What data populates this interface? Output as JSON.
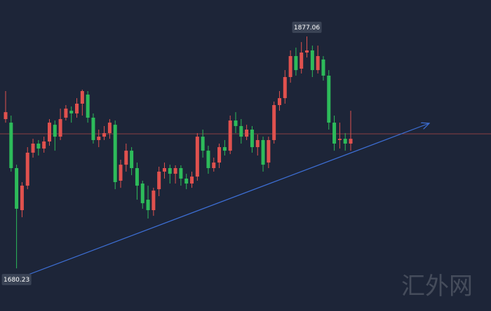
{
  "chart_data": {
    "type": "candlestick",
    "up_color": "#e0514e",
    "down_color": "#2dbb5a",
    "ylim": [
      1644,
      1908
    ],
    "price_line": 1794.4,
    "max_label": "1877.06",
    "min_label": "1680.23",
    "watermark": "汇外网",
    "open": [
      1806.9,
      1803.9,
      1765.3,
      1729.6,
      1750.4,
      1778.4,
      1786.1,
      1781.9,
      1787.9,
      1802.1,
      1792.0,
      1808.1,
      1814.0,
      1811.7,
      1820.0,
      1827.7,
      1808.1,
      1789.1,
      1792.0,
      1795.0,
      1802.1,
      1754.6,
      1768.2,
      1780.1,
      1765.3,
      1752.2,
      1738.5,
      1729.6,
      1747.4,
      1762.3,
      1765.3,
      1760.5,
      1765.3,
      1756.4,
      1752.2,
      1758.1,
      1792.0,
      1780.1,
      1765.3,
      1770.0,
      1783.1,
      1780.1,
      1805.7,
      1801.0,
      1792.0,
      1798.0,
      1783.1,
      1789.1,
      1770.0,
      1789.1,
      1818.8,
      1824.7,
      1842.6,
      1860.4,
      1849.7,
      1863.4,
      1865.2,
      1848.5,
      1857.5,
      1843.8,
      1803.9,
      1789.1,
      1790.2,
      1786.1
    ],
    "high": [
      1830.7,
      1809.9,
      1768.2,
      1753.4,
      1783.1,
      1790.2,
      1789.1,
      1792.0,
      1806.9,
      1805.7,
      1815.8,
      1818.8,
      1817.6,
      1824.7,
      1831.9,
      1830.7,
      1811.7,
      1798.0,
      1801.0,
      1806.9,
      1805.7,
      1772.4,
      1786.1,
      1783.1,
      1770.0,
      1754.6,
      1750.4,
      1748.6,
      1766.5,
      1770.0,
      1768.2,
      1767.7,
      1767.7,
      1760.5,
      1762.3,
      1795.0,
      1798.0,
      1784.3,
      1774.2,
      1786.1,
      1789.1,
      1809.9,
      1812.8,
      1806.9,
      1802.1,
      1801.0,
      1793.8,
      1792.0,
      1792.0,
      1821.8,
      1830.7,
      1848.5,
      1865.2,
      1867.6,
      1872.3,
      1877.06,
      1869.3,
      1869.3,
      1860.4,
      1848.5,
      1809.9,
      1803.9,
      1795.0,
      1814.0
    ],
    "low": [
      1803.9,
      1762.3,
      1680.23,
      1723.6,
      1747.4,
      1774.2,
      1776.0,
      1778.4,
      1784.3,
      1780.1,
      1789.1,
      1805.7,
      1803.9,
      1808.1,
      1809.9,
      1803.9,
      1786.1,
      1783.1,
      1789.1,
      1790.2,
      1747.4,
      1748.6,
      1762.3,
      1759.3,
      1738.5,
      1730.8,
      1722.5,
      1724.8,
      1741.5,
      1756.4,
      1752.2,
      1752.2,
      1750.4,
      1747.4,
      1748.6,
      1754.6,
      1774.2,
      1760.5,
      1762.3,
      1765.3,
      1776.0,
      1777.2,
      1795.0,
      1786.1,
      1789.1,
      1778.4,
      1776.0,
      1762.3,
      1765.3,
      1786.1,
      1814.0,
      1820.0,
      1837.8,
      1843.8,
      1845.6,
      1859.2,
      1842.6,
      1845.6,
      1839.6,
      1798.0,
      1780.1,
      1781.9,
      1780.1,
      1780.1
    ],
    "close": [
      1812.8,
      1765.3,
      1730.8,
      1750.4,
      1778.4,
      1786.1,
      1781.9,
      1787.9,
      1803.9,
      1792.0,
      1806.9,
      1815.8,
      1811.7,
      1820.0,
      1830.7,
      1808.1,
      1789.1,
      1792.0,
      1795.0,
      1803.9,
      1753.4,
      1768.2,
      1780.1,
      1765.3,
      1750.4,
      1735.5,
      1729.6,
      1746.2,
      1762.3,
      1765.3,
      1760.5,
      1765.3,
      1756.4,
      1752.2,
      1758.1,
      1792.0,
      1780.1,
      1765.3,
      1770.0,
      1783.1,
      1780.1,
      1805.7,
      1801.0,
      1792.0,
      1798.0,
      1783.1,
      1789.1,
      1768.2,
      1789.1,
      1818.8,
      1824.7,
      1842.6,
      1860.4,
      1848.5,
      1863.4,
      1865.2,
      1848.5,
      1860.4,
      1843.8,
      1803.9,
      1786.1,
      1790.2,
      1786.1,
      1790.2
    ]
  }
}
